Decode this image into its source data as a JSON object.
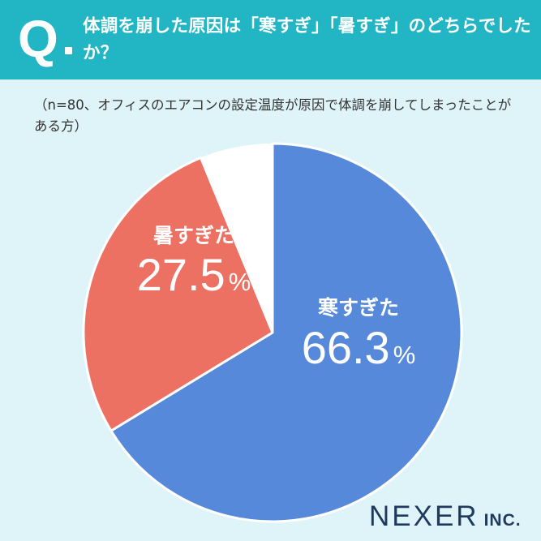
{
  "header": {
    "q_letter": "Q",
    "question": "体調を崩した原因は「寒すぎ」「暑すぎ」のどちらでしたか？"
  },
  "note": "（n=80、オフィスのエアコンの設定温度が原因で体調を崩してしまったことがある方）",
  "chart_data": {
    "type": "pie",
    "start": "12 o'clock",
    "direction": "clockwise",
    "slices": [
      {
        "label": "寒すぎた",
        "value": 66.3,
        "value_text": "66.3",
        "unit": "%",
        "color": "#5689d9"
      },
      {
        "label": "暑すぎた",
        "value": 27.5,
        "value_text": "27.5",
        "unit": "%",
        "color": "#ed7163"
      }
    ],
    "remainder_value": 6.2
  },
  "colors": {
    "background": "#dff4f8",
    "header": "#22b6c5",
    "remainder": "#ffffff",
    "brand": "#1f3a5c"
  },
  "brand": {
    "name": "NEXER",
    "suffix": "INC."
  }
}
